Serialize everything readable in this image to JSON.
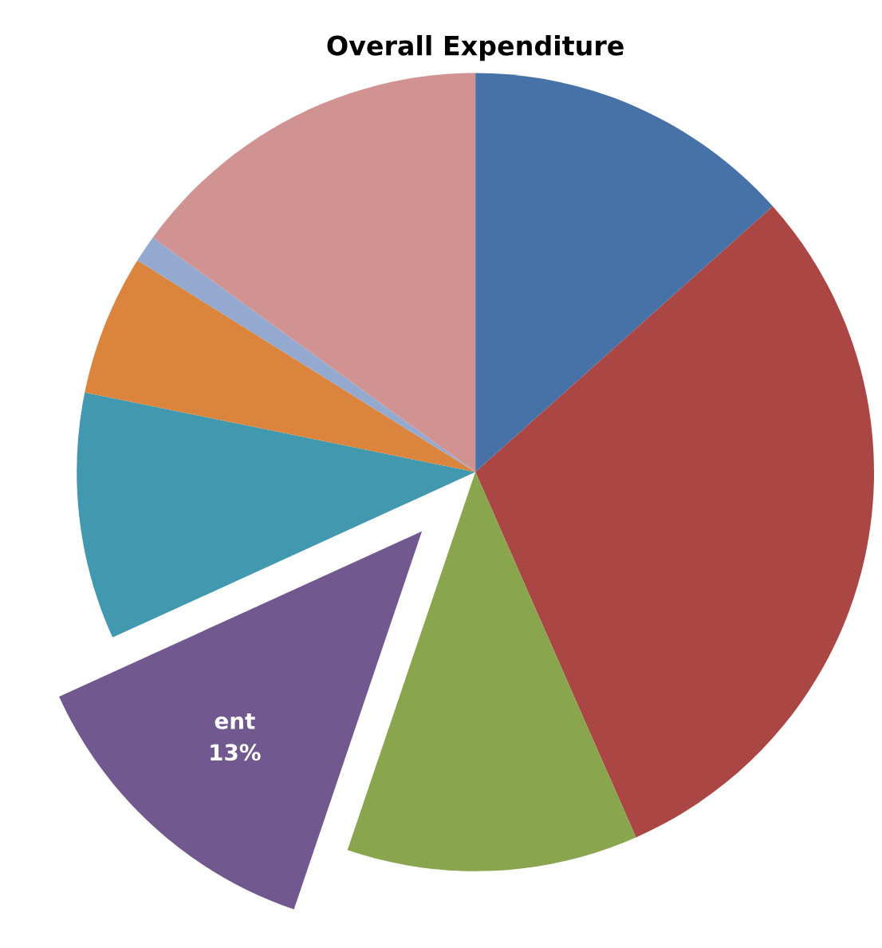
{
  "chart_data": {
    "type": "pie",
    "title": "Overall Expenditure",
    "categories": [
      null,
      null,
      null,
      "ent",
      null,
      null,
      null,
      null
    ],
    "values": [
      13.4,
      30,
      11.8,
      13,
      10,
      5.7,
      1.1,
      15
    ],
    "value_labels": [
      null,
      null,
      null,
      "13%",
      null,
      null,
      null,
      null
    ],
    "colors": [
      "#4672a8",
      "#aa4644",
      "#89a54e",
      "#71588f",
      "#4198af",
      "#db843d",
      "#93a9cf",
      "#d19392"
    ],
    "legend": false
  }
}
